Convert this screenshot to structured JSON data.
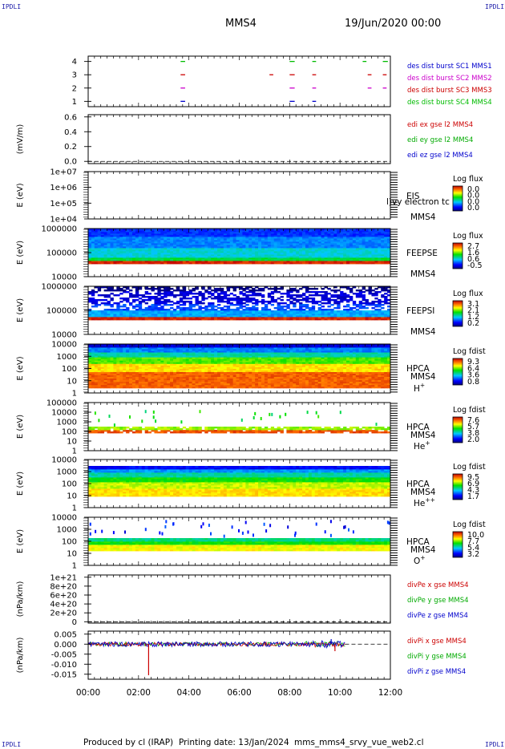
{
  "header": {
    "corner_label": "IPDLI",
    "spacecraft": "MMS4",
    "date": "19/Jun/2020 00:00"
  },
  "footer": {
    "produced_by": "Produced by cl (IRAP)",
    "printing_date": "Printing date: 13/Jan/2024",
    "script_name": "mms_mms4_srvy_vue_web2.cl"
  },
  "x_axis": {
    "range_hours": [
      0,
      12
    ],
    "tick_hours": [
      0,
      2,
      4,
      6,
      8,
      10,
      12
    ],
    "tick_labels": [
      "00:00",
      "02:00",
      "04:00",
      "06:00",
      "08:00",
      "10:00",
      "12:00"
    ]
  },
  "chart_data": [
    {
      "id": "burst",
      "type": "line",
      "y_ticks": [
        1,
        2,
        3,
        4
      ],
      "y_labels": [
        "1",
        "2",
        "3",
        "4"
      ],
      "ylim": [
        0.6,
        4.4
      ],
      "legend": [
        {
          "text": "des dist burst SC1 MMS1",
          "color": "#0000cc"
        },
        {
          "text": "des dist burst SC2 MMS2",
          "color": "#cc00cc"
        },
        {
          "text": "des dist burst SC3 MMS3",
          "color": "#cc0000"
        },
        {
          "text": "des dist burst SC4 MMS4",
          "color": "#00bb00"
        }
      ],
      "burst_intervals_hours": [
        [
          3.67,
          3.85
        ],
        [
          8.0,
          8.2
        ],
        [
          8.9,
          9.05
        ]
      ],
      "extra_marks": [
        {
          "level": 3,
          "hours": [
            7.2,
            7.35
          ],
          "color": "#cc0000"
        },
        {
          "level": 3,
          "hours": [
            11.1,
            11.25
          ],
          "color": "#cc0000"
        },
        {
          "level": 3,
          "hours": [
            11.7,
            11.85
          ],
          "color": "#cc0000"
        },
        {
          "level": 2,
          "hours": [
            11.1,
            11.25
          ],
          "color": "#cc00cc"
        },
        {
          "level": 2,
          "hours": [
            11.7,
            11.85
          ],
          "color": "#cc00cc"
        },
        {
          "level": 4,
          "hours": [
            10.9,
            11.05
          ],
          "color": "#00bb00"
        },
        {
          "level": 4,
          "hours": [
            11.7,
            11.9
          ],
          "color": "#00bb00"
        }
      ]
    },
    {
      "id": "edi",
      "type": "line",
      "ylabel": "(mV/m)",
      "y_ticks": [
        0,
        0.2,
        0.4,
        0.6
      ],
      "y_labels": [
        "0.0",
        "0.2",
        "0.4",
        "0.6"
      ],
      "ylim": [
        -0.03,
        0.63
      ],
      "legend": [
        {
          "text": "edi ex gse l2 MMS4",
          "color": "#cc0000"
        },
        {
          "text": "edi ey gse l2 MMS4",
          "color": "#00aa00"
        },
        {
          "text": "edi ez gse l2 MMS4",
          "color": "#0000cc"
        }
      ],
      "baseline": 0
    },
    {
      "id": "eis",
      "type": "heatmap",
      "ylabel": "E (eV)",
      "y_log": true,
      "y_ticks": [
        4,
        5,
        6,
        7
      ],
      "y_labels": [
        "1e+04",
        "1e+05",
        "1e+06",
        "1e+07"
      ],
      "side_labels": [
        "EIS",
        "MMS4"
      ],
      "overlay_text": "l)vy electron tc",
      "cbar": {
        "title": "Log flux",
        "ticks": [
          "0.0",
          "0.0",
          "0.0",
          "0.0"
        ]
      }
    },
    {
      "id": "feepse",
      "type": "heatmap",
      "ylabel": "E (eV)",
      "y_log": true,
      "y_ticks": [
        4,
        5,
        6
      ],
      "y_labels": [
        "10000",
        "100000",
        "1000000"
      ],
      "side_labels": [
        "FEEPSE",
        "MMS4"
      ],
      "cbar": {
        "title": "Log flux",
        "ticks": [
          "2.7",
          "1.6",
          "0.6",
          "-0.5"
        ]
      }
    },
    {
      "id": "feepsi",
      "type": "heatmap",
      "ylabel": "E (eV)",
      "y_log": true,
      "y_ticks": [
        4,
        5,
        6
      ],
      "y_labels": [
        "10000",
        "100000",
        "1000000"
      ],
      "side_labels": [
        "FEEPSI",
        "MMS4"
      ],
      "cbar": {
        "title": "Log flux",
        "ticks": [
          "3.1",
          "2.1",
          "1.2",
          "0.2"
        ]
      }
    },
    {
      "id": "hpca_h",
      "type": "heatmap",
      "ylabel": "E (eV)",
      "y_log": true,
      "y_ticks": [
        0,
        1,
        2,
        3,
        4
      ],
      "y_labels": [
        "1",
        "10",
        "100",
        "1000",
        "10000"
      ],
      "side_labels": [
        "HPCA",
        "MMS4"
      ],
      "species": "H",
      "species_sup": "+",
      "cbar": {
        "title": "Log fdist",
        "ticks": [
          "9.3",
          "6.4",
          "3.6",
          "0.8"
        ]
      }
    },
    {
      "id": "hpca_he",
      "type": "heatmap",
      "ylabel": "E (eV)",
      "y_log": true,
      "y_ticks": [
        0,
        1,
        2,
        3,
        4,
        5
      ],
      "y_labels": [
        "1",
        "10",
        "100",
        "1000",
        "10000",
        "100000"
      ],
      "side_labels": [
        "HPCA",
        "MMS4"
      ],
      "species": "He",
      "species_sup": "+",
      "cbar": {
        "title": "Log fdist",
        "ticks": [
          "7.6",
          "5.7",
          "3.8",
          "2.0"
        ]
      }
    },
    {
      "id": "hpca_hepp",
      "type": "heatmap",
      "ylabel": "E (eV)",
      "y_log": true,
      "y_ticks": [
        0,
        1,
        2,
        3,
        4
      ],
      "y_labels": [
        "1",
        "10",
        "100",
        "1000",
        "10000"
      ],
      "side_labels": [
        "HPCA",
        "MMS4"
      ],
      "species": "He",
      "species_sup": "++",
      "cbar": {
        "title": "Log fdist",
        "ticks": [
          "9.5",
          "6.9",
          "4.3",
          "1.7"
        ]
      }
    },
    {
      "id": "hpca_o",
      "type": "heatmap",
      "ylabel": "E (eV)",
      "y_log": true,
      "y_ticks": [
        0,
        1,
        2,
        3,
        4
      ],
      "y_labels": [
        "1",
        "10",
        "100",
        "1000",
        "10000"
      ],
      "side_labels": [
        "HPCA",
        "MMS4"
      ],
      "species": "O",
      "species_sup": "+",
      "cbar": {
        "title": "Log fdist",
        "ticks": [
          "10.0",
          "7.7",
          "5.4",
          "3.2"
        ]
      }
    },
    {
      "id": "divpe",
      "type": "line",
      "ylabel": "(nPa/km)",
      "y_ticks": [
        0,
        2e+20,
        4e+20,
        6e+20,
        8e+20,
        1e+21
      ],
      "y_labels": [
        "0",
        "2e+20",
        "4e+20",
        "6e+20",
        "8e+20",
        "1e+21"
      ],
      "ylim": [
        -3e+19,
        1.05e+21
      ],
      "legend": [
        {
          "text": "divPe x gse MMS4",
          "color": "#cc0000"
        },
        {
          "text": "divPe y gse MMS4",
          "color": "#00aa00"
        },
        {
          "text": "divPe z gse MMS4",
          "color": "#0000cc"
        }
      ],
      "baseline": 0
    },
    {
      "id": "divpi",
      "type": "line",
      "ylabel": "(nPa/km)",
      "y_ticks": [
        -0.015,
        -0.01,
        -0.005,
        0,
        0.005
      ],
      "y_labels": [
        "-0.015",
        "-0.010",
        "-0.005",
        "0.000",
        "0.005"
      ],
      "ylim": [
        -0.0175,
        0.0065
      ],
      "legend": [
        {
          "text": "divPi x gse MMS4",
          "color": "#cc0000"
        },
        {
          "text": "divPi y gse MMS4",
          "color": "#00aa00"
        },
        {
          "text": "divPi z gse MMS4",
          "color": "#0000cc"
        }
      ],
      "data_end_hour": 10.2,
      "spikes": [
        {
          "hour": 2.4,
          "value": -0.0155,
          "color": "#cc0000"
        },
        {
          "hour": 9.8,
          "value": -0.0035,
          "color": "#cc0000"
        },
        {
          "hour": 9.65,
          "value": 0.0025,
          "color": "#0000cc"
        }
      ]
    }
  ]
}
